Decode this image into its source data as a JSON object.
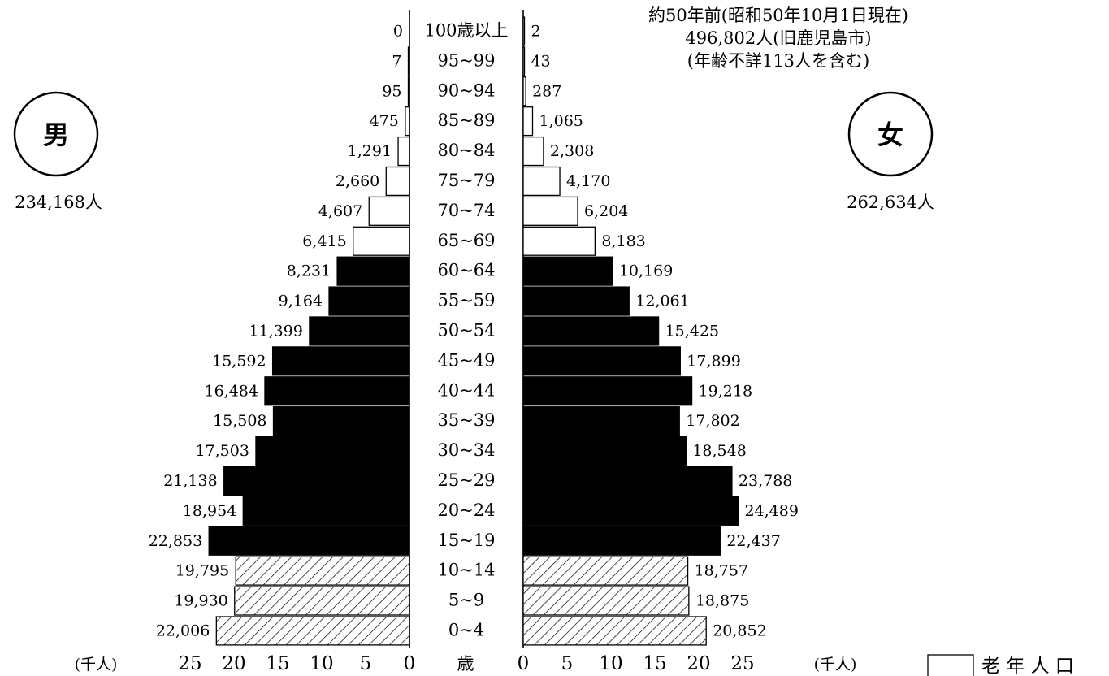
{
  "chart_data": {
    "type": "bar",
    "subtype": "population-pyramid",
    "title": "約50年前(昭和50年10月1日現在)",
    "subtitle": "496,802人(旧鹿児島市)",
    "note": "(年齢不詳113人を含む)",
    "left_label": "男",
    "right_label": "女",
    "left_total": "234,168人",
    "right_total": "262,634人",
    "unit_left": "(千人)",
    "unit_right": "(千人)",
    "center_axis_label": "歳",
    "xlim": [
      0,
      25
    ],
    "xticks": [
      "25",
      "20",
      "15",
      "10",
      "5",
      "0"
    ],
    "xticks_right": [
      "0",
      "5",
      "10",
      "15",
      "20",
      "25"
    ],
    "legend_label": "老 年 人 口",
    "categories": [
      "100歳以上",
      "95~99",
      "90~94",
      "85~89",
      "80~84",
      "75~79",
      "70~74",
      "65~69",
      "60~64",
      "55~59",
      "50~54",
      "45~49",
      "40~44",
      "35~39",
      "30~34",
      "25~29",
      "20~24",
      "15~19",
      "10~14",
      "5~9",
      "0~4"
    ],
    "groups": [
      "old",
      "old",
      "old",
      "old",
      "old",
      "old",
      "old",
      "old",
      "working",
      "working",
      "working",
      "working",
      "working",
      "working",
      "working",
      "working",
      "working",
      "working",
      "young",
      "young",
      "young"
    ],
    "series": [
      {
        "name": "男",
        "values": [
          0,
          7,
          95,
          475,
          1291,
          2660,
          4607,
          6415,
          8231,
          9164,
          11399,
          15592,
          16484,
          15508,
          17503,
          21138,
          18954,
          22853,
          19795,
          19930,
          22006
        ],
        "labels": [
          "0",
          "7",
          "95",
          "475",
          "1,291",
          "2,660",
          "4,607",
          "6,415",
          "8,231",
          "9,164",
          "11,399",
          "15,592",
          "16,484",
          "15,508",
          "17,503",
          "21,138",
          "18,954",
          "22,853",
          "19,795",
          "19,930",
          "22,006"
        ]
      },
      {
        "name": "女",
        "values": [
          2,
          43,
          287,
          1065,
          2308,
          4170,
          6204,
          8183,
          10169,
          12061,
          15425,
          17899,
          19218,
          17802,
          18548,
          23788,
          24489,
          22437,
          18757,
          18875,
          20852
        ],
        "labels": [
          "2",
          "43",
          "287",
          "1,065",
          "2,308",
          "4,170",
          "6,204",
          "8,183",
          "10,169",
          "12,061",
          "15,425",
          "17,899",
          "19,218",
          "17,802",
          "18,548",
          "23,788",
          "24,489",
          "22,437",
          "18,757",
          "18,875",
          "20,852"
        ]
      }
    ]
  }
}
